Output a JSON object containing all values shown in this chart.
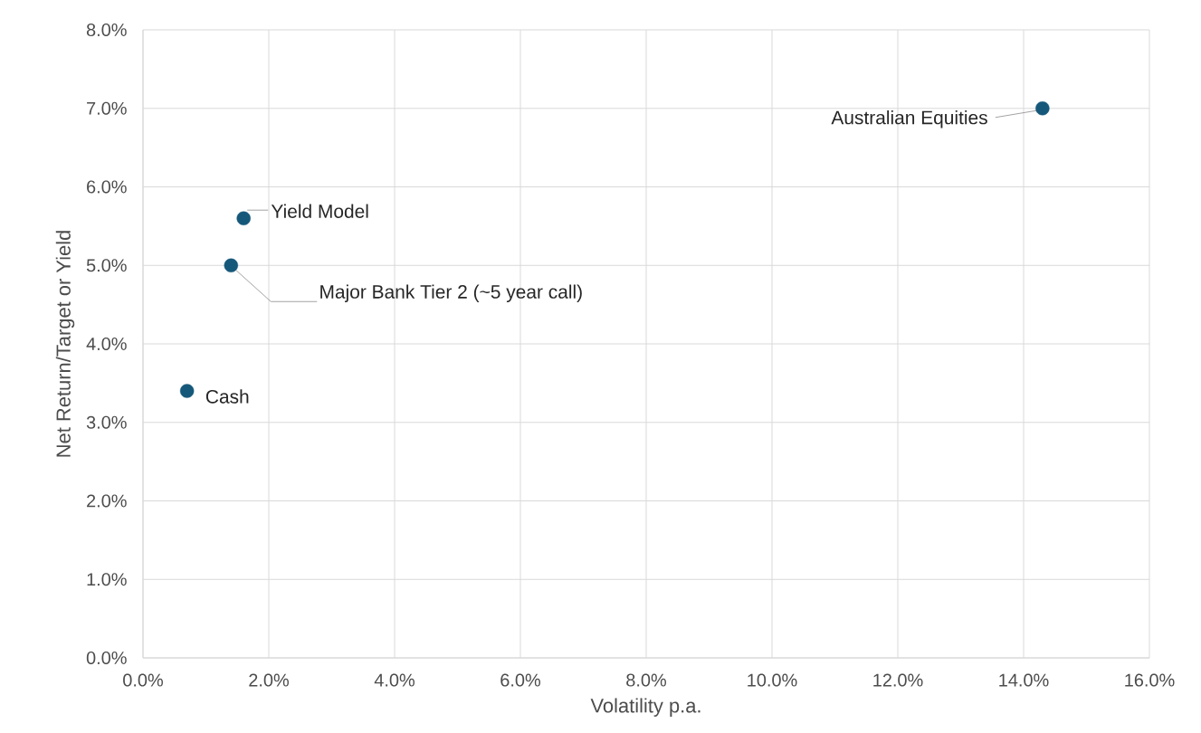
{
  "chart_data": {
    "type": "scatter",
    "xlabel": "Volatility p.a.",
    "ylabel": "Net Return/Target or Yield",
    "x": [
      0.7,
      1.4,
      1.6,
      14.3
    ],
    "values": [
      3.4,
      5.0,
      5.6,
      7.0
    ],
    "color": "#16587a",
    "marker": "circle",
    "grid": true,
    "xlim": [
      0,
      16
    ],
    "ylim": [
      0,
      8
    ],
    "xticks": [
      {
        "value": 0,
        "label": "0.0%"
      },
      {
        "value": 2,
        "label": "2.0%"
      },
      {
        "value": 4,
        "label": "4.0%"
      },
      {
        "value": 6,
        "label": "6.0%"
      },
      {
        "value": 8,
        "label": "8.0%"
      },
      {
        "value": 10,
        "label": "10.0%"
      },
      {
        "value": 12,
        "label": "12.0%"
      },
      {
        "value": 14,
        "label": "14.0%"
      },
      {
        "value": 16,
        "label": "16.0%"
      }
    ],
    "yticks": [
      {
        "value": 0,
        "label": "0.0%"
      },
      {
        "value": 1,
        "label": "1.0%"
      },
      {
        "value": 2,
        "label": "2.0%"
      },
      {
        "value": 3,
        "label": "3.0%"
      },
      {
        "value": 4,
        "label": "4.0%"
      },
      {
        "value": 5,
        "label": "5.0%"
      },
      {
        "value": 6,
        "label": "6.0%"
      },
      {
        "value": 7,
        "label": "7.0%"
      },
      {
        "value": 8,
        "label": "8.0%"
      }
    ],
    "annotations": [
      {
        "text": "Cash",
        "x": 0.7,
        "y": 3.4
      },
      {
        "text": "Major Bank Tier 2 (~5 year call)",
        "x": 1.4,
        "y": 5.0
      },
      {
        "text": "Yield Model",
        "x": 1.6,
        "y": 5.6
      },
      {
        "text": "Australian Equities",
        "x": 14.3,
        "y": 7.0
      }
    ]
  }
}
